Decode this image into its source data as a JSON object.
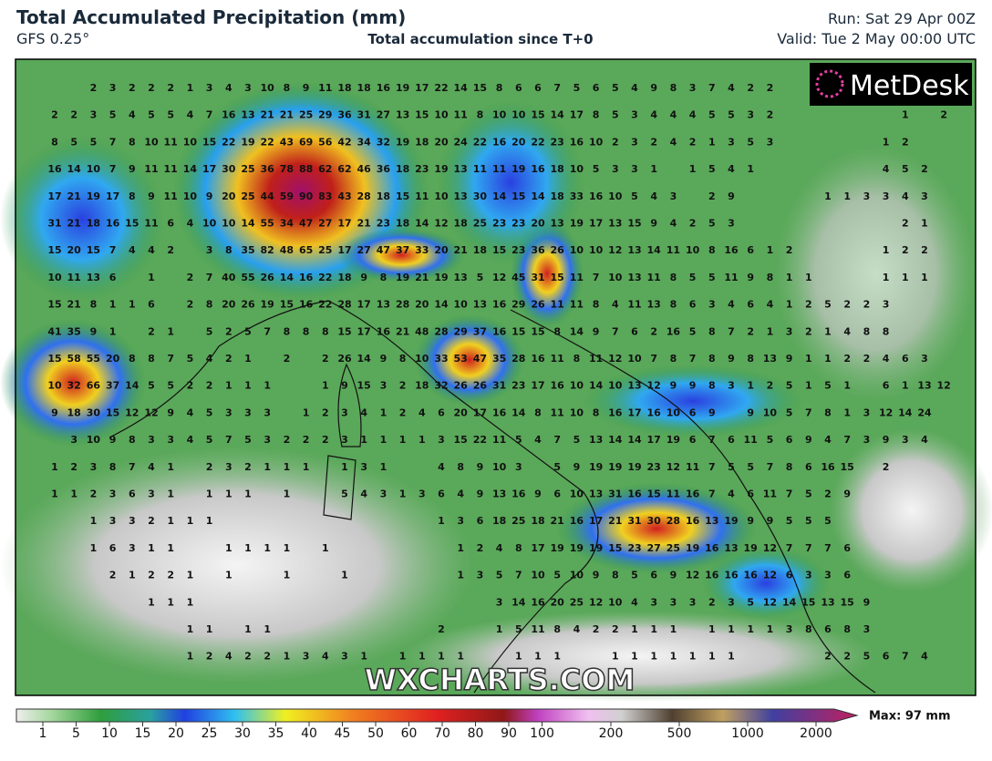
{
  "header": {
    "title": "Total Accumulated Precipitation (mm)",
    "model": "GFS 0.25°",
    "subtitle": "Total accumulation since T+0",
    "run": "Run: Sat 29 Apr 00Z",
    "valid": "Valid: Tue 2 May 00:00 UTC"
  },
  "logo": "MetDesk",
  "watermark": "WXCHARTS.COM",
  "map": {
    "rows": [
      [
        null,
        null,
        2,
        3,
        2,
        2,
        2,
        1,
        3,
        4,
        3,
        10,
        8,
        9,
        11,
        18,
        18,
        16,
        19,
        17,
        22,
        14,
        15,
        8,
        6,
        6,
        7,
        5,
        6,
        5,
        4,
        9,
        8,
        3,
        7,
        4,
        2,
        2
      ],
      [
        2,
        2,
        3,
        5,
        4,
        5,
        5,
        4,
        7,
        16,
        13,
        21,
        21,
        25,
        29,
        36,
        31,
        27,
        13,
        15,
        10,
        11,
        8,
        10,
        10,
        15,
        14,
        17,
        8,
        5,
        3,
        4,
        4,
        4,
        5,
        5,
        3,
        2,
        null,
        null,
        null,
        null,
        null,
        null,
        1,
        null,
        2
      ],
      [
        8,
        5,
        5,
        7,
        8,
        10,
        11,
        10,
        15,
        22,
        19,
        22,
        43,
        69,
        56,
        42,
        34,
        32,
        19,
        18,
        20,
        24,
        22,
        16,
        20,
        22,
        23,
        16,
        10,
        2,
        3,
        2,
        4,
        2,
        1,
        3,
        5,
        3,
        null,
        null,
        null,
        null,
        null,
        1,
        2
      ],
      [
        16,
        14,
        10,
        7,
        9,
        11,
        11,
        14,
        17,
        30,
        25,
        36,
        78,
        88,
        62,
        62,
        46,
        36,
        18,
        23,
        19,
        13,
        11,
        11,
        19,
        16,
        18,
        10,
        5,
        3,
        3,
        1,
        null,
        1,
        5,
        4,
        1,
        null,
        null,
        null,
        null,
        null,
        null,
        4,
        5,
        2
      ],
      [
        17,
        21,
        19,
        17,
        8,
        9,
        11,
        10,
        9,
        20,
        25,
        44,
        59,
        90,
        83,
        43,
        28,
        18,
        15,
        11,
        10,
        13,
        30,
        14,
        15,
        14,
        18,
        33,
        16,
        10,
        5,
        4,
        3,
        null,
        2,
        9,
        null,
        null,
        null,
        null,
        1,
        1,
        3,
        3,
        4,
        3
      ],
      [
        31,
        21,
        18,
        16,
        15,
        11,
        6,
        4,
        10,
        10,
        14,
        55,
        34,
        47,
        27,
        17,
        21,
        23,
        18,
        14,
        12,
        18,
        25,
        23,
        23,
        20,
        13,
        19,
        17,
        13,
        15,
        9,
        4,
        2,
        5,
        3,
        null,
        null,
        null,
        null,
        null,
        null,
        null,
        null,
        2,
        1
      ],
      [
        15,
        20,
        15,
        7,
        4,
        4,
        2,
        null,
        3,
        8,
        35,
        82,
        48,
        65,
        25,
        17,
        27,
        47,
        37,
        33,
        20,
        21,
        18,
        15,
        23,
        36,
        26,
        10,
        10,
        12,
        13,
        14,
        11,
        10,
        8,
        16,
        6,
        1,
        2,
        null,
        null,
        null,
        null,
        1,
        2,
        2
      ],
      [
        10,
        11,
        13,
        6,
        null,
        1,
        null,
        2,
        7,
        40,
        55,
        26,
        14,
        16,
        22,
        18,
        9,
        8,
        19,
        21,
        19,
        13,
        5,
        12,
        45,
        31,
        15,
        11,
        7,
        10,
        13,
        11,
        8,
        5,
        5,
        11,
        9,
        8,
        1,
        1,
        null,
        null,
        null,
        1,
        1,
        1
      ],
      [
        15,
        21,
        8,
        1,
        1,
        6,
        null,
        2,
        8,
        20,
        26,
        19,
        15,
        16,
        22,
        28,
        17,
        13,
        28,
        20,
        14,
        10,
        13,
        16,
        29,
        26,
        11,
        11,
        8,
        4,
        11,
        13,
        8,
        6,
        3,
        4,
        6,
        4,
        1,
        2,
        5,
        2,
        2,
        3
      ],
      [
        41,
        35,
        9,
        1,
        null,
        2,
        1,
        null,
        5,
        2,
        5,
        7,
        8,
        8,
        8,
        15,
        17,
        16,
        21,
        48,
        28,
        29,
        37,
        16,
        15,
        15,
        8,
        14,
        9,
        7,
        6,
        2,
        16,
        5,
        8,
        7,
        2,
        1,
        3,
        2,
        1,
        4,
        8,
        8
      ],
      [
        15,
        58,
        55,
        20,
        8,
        8,
        7,
        5,
        4,
        2,
        1,
        null,
        2,
        null,
        2,
        26,
        14,
        9,
        8,
        10,
        33,
        53,
        47,
        35,
        28,
        16,
        11,
        8,
        11,
        12,
        10,
        7,
        8,
        7,
        8,
        9,
        8,
        13,
        9,
        1,
        1,
        2,
        2,
        4,
        6,
        3
      ],
      [
        10,
        32,
        66,
        37,
        14,
        5,
        5,
        2,
        2,
        1,
        1,
        1,
        null,
        null,
        1,
        9,
        15,
        3,
        2,
        18,
        32,
        26,
        26,
        31,
        23,
        17,
        16,
        10,
        14,
        10,
        13,
        12,
        9,
        9,
        8,
        3,
        1,
        2,
        5,
        1,
        5,
        1,
        null,
        6,
        1,
        13,
        12
      ],
      [
        9,
        18,
        30,
        15,
        12,
        12,
        9,
        4,
        5,
        3,
        3,
        3,
        null,
        1,
        2,
        3,
        4,
        1,
        2,
        4,
        6,
        20,
        17,
        16,
        14,
        8,
        11,
        10,
        8,
        16,
        17,
        16,
        10,
        6,
        9,
        null,
        9,
        10,
        5,
        7,
        8,
        1,
        3,
        12,
        14,
        24
      ],
      [
        null,
        3,
        10,
        9,
        8,
        3,
        3,
        4,
        5,
        7,
        5,
        3,
        2,
        2,
        2,
        3,
        1,
        1,
        1,
        1,
        3,
        15,
        22,
        11,
        5,
        4,
        7,
        5,
        13,
        14,
        14,
        17,
        19,
        6,
        7,
        6,
        11,
        5,
        6,
        9,
        4,
        7,
        3,
        9,
        3,
        4
      ],
      [
        1,
        2,
        3,
        8,
        7,
        4,
        1,
        null,
        2,
        3,
        2,
        1,
        1,
        1,
        null,
        1,
        3,
        1,
        null,
        null,
        4,
        8,
        9,
        10,
        3,
        null,
        5,
        9,
        19,
        19,
        19,
        23,
        12,
        11,
        7,
        5,
        5,
        7,
        8,
        6,
        16,
        15,
        null,
        2
      ],
      [
        1,
        1,
        2,
        3,
        6,
        3,
        1,
        null,
        1,
        1,
        1,
        null,
        1,
        null,
        null,
        5,
        4,
        3,
        1,
        3,
        6,
        4,
        9,
        13,
        16,
        9,
        6,
        10,
        13,
        31,
        16,
        15,
        11,
        16,
        7,
        4,
        6,
        11,
        7,
        5,
        2,
        9
      ],
      [
        null,
        null,
        1,
        3,
        3,
        2,
        1,
        1,
        1,
        null,
        null,
        null,
        null,
        null,
        null,
        null,
        null,
        null,
        null,
        null,
        1,
        3,
        6,
        18,
        25,
        18,
        21,
        16,
        17,
        21,
        31,
        30,
        28,
        16,
        13,
        19,
        9,
        9,
        5,
        5,
        5
      ],
      [
        null,
        null,
        1,
        6,
        3,
        1,
        1,
        null,
        null,
        1,
        1,
        1,
        1,
        null,
        1,
        null,
        null,
        null,
        null,
        null,
        null,
        1,
        2,
        4,
        8,
        17,
        19,
        19,
        19,
        15,
        23,
        27,
        25,
        19,
        16,
        13,
        19,
        12,
        7,
        7,
        7,
        6
      ],
      [
        null,
        null,
        null,
        2,
        1,
        2,
        2,
        1,
        null,
        1,
        null,
        null,
        1,
        null,
        null,
        1,
        null,
        null,
        null,
        null,
        null,
        1,
        3,
        5,
        7,
        10,
        5,
        10,
        9,
        8,
        5,
        6,
        9,
        12,
        16,
        16,
        16,
        12,
        6,
        3,
        3,
        6
      ],
      [
        null,
        null,
        null,
        null,
        null,
        1,
        1,
        1,
        null,
        null,
        null,
        null,
        null,
        null,
        null,
        null,
        null,
        null,
        null,
        null,
        null,
        null,
        null,
        3,
        14,
        16,
        20,
        25,
        12,
        10,
        4,
        3,
        3,
        3,
        2,
        3,
        5,
        12,
        14,
        15,
        13,
        15,
        9
      ],
      [
        null,
        null,
        null,
        null,
        null,
        null,
        null,
        1,
        1,
        null,
        1,
        1,
        null,
        null,
        null,
        null,
        null,
        null,
        null,
        null,
        2,
        null,
        null,
        1,
        5,
        11,
        8,
        4,
        2,
        2,
        1,
        1,
        1,
        null,
        1,
        1,
        1,
        1,
        3,
        8,
        6,
        8,
        3
      ],
      [
        null,
        null,
        null,
        null,
        null,
        null,
        null,
        1,
        2,
        4,
        2,
        2,
        1,
        3,
        4,
        3,
        1,
        null,
        1,
        1,
        1,
        1,
        null,
        null,
        1,
        1,
        1,
        null,
        null,
        1,
        1,
        1,
        1,
        1,
        1,
        1,
        null,
        null,
        null,
        null,
        2,
        2,
        5,
        6,
        7,
        4
      ]
    ]
  },
  "colorbar": {
    "ticks": [
      1,
      5,
      10,
      15,
      20,
      25,
      30,
      35,
      40,
      45,
      50,
      60,
      70,
      80,
      90,
      100,
      200,
      500,
      1000,
      2000
    ],
    "max": "Max: 97 mm"
  }
}
